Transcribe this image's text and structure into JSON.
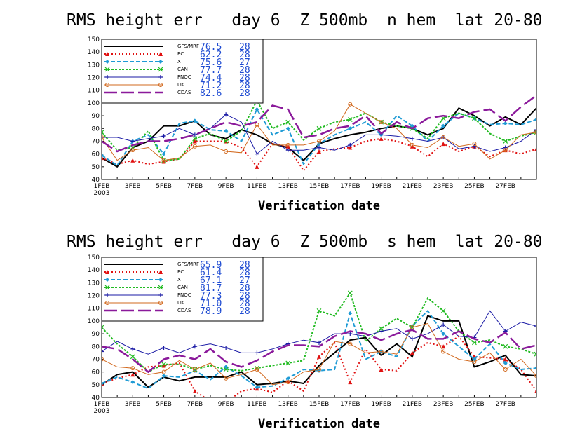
{
  "chart_data": [
    {
      "type": "line",
      "title": "RMS height err   day 6  Z 500mb  n hem  lat 20-80",
      "xlabel": "Verification date",
      "ylim": [
        40,
        150
      ],
      "yticks": [
        40,
        50,
        60,
        70,
        80,
        90,
        100,
        110,
        120,
        130,
        140,
        150
      ],
      "xtick_labels": [
        "1FEB\n2003",
        "3FEB",
        "5FEB",
        "7FEB",
        "9FEB",
        "11FEB",
        "13FEB",
        "15FEB",
        "17FEB",
        "19FEB",
        "21FEB",
        "23FEB",
        "25FEB",
        "27FEB"
      ],
      "legend_position": "top-left",
      "series": [
        {
          "name": "GFS/MRF",
          "stat": "76.5",
          "count": "28",
          "color": "#000000",
          "values": [
            57,
            50,
            65,
            70,
            82,
            82,
            86,
            75,
            72,
            79,
            75,
            68,
            65,
            55,
            68,
            72,
            75,
            77,
            80,
            82,
            80,
            75,
            80,
            96,
            90,
            82,
            89,
            83,
            96
          ]
        },
        {
          "name": "EC",
          "stat": "62.2",
          "count": "28",
          "color": "#e01010",
          "values": [
            57,
            52,
            55,
            52,
            54,
            56,
            70,
            70,
            70,
            65,
            50,
            68,
            66,
            47,
            62,
            64,
            65,
            70,
            72,
            70,
            66,
            58,
            68,
            62,
            66,
            58,
            63,
            60,
            64
          ]
        },
        {
          "name": "X",
          "stat": "75.6",
          "count": "27",
          "color": "#1f9bd5",
          "values": [
            59,
            51,
            70,
            75,
            60,
            84,
            86,
            79,
            78,
            70,
            95,
            75,
            80,
            52,
            68,
            75,
            80,
            85,
            75,
            90,
            82,
            70,
            82,
            92,
            88,
            83,
            84,
            83,
            87
          ]
        },
        {
          "name": "CAN",
          "stat": "77.7",
          "count": "28",
          "color": "#22bb22",
          "values": [
            77,
            63,
            65,
            78,
            55,
            56,
            72,
            76,
            70,
            78,
            102,
            80,
            85,
            71,
            80,
            85,
            87,
            92,
            85,
            82,
            80,
            72,
            88,
            92,
            88,
            76,
            70,
            74,
            77
          ]
        },
        {
          "name": "FNOC",
          "stat": "74.4",
          "count": "28",
          "color": "#1a1aa5",
          "values": [
            73,
            73,
            70,
            72,
            74,
            80,
            75,
            80,
            91,
            85,
            60,
            70,
            63,
            63,
            65,
            63,
            67,
            75,
            75,
            74,
            72,
            70,
            73,
            64,
            66,
            62,
            65,
            70,
            79
          ]
        },
        {
          "name": "UK",
          "stat": "71.2",
          "count": "28",
          "color": "#d2691e",
          "values": [
            73,
            55,
            63,
            65,
            55,
            57,
            66,
            67,
            62,
            61,
            83,
            67,
            67,
            67,
            70,
            78,
            99,
            92,
            85,
            80,
            67,
            65,
            73,
            66,
            68,
            56,
            63,
            75,
            77
          ]
        },
        {
          "name": "CDAS",
          "stat": "82.6",
          "count": "28",
          "color": "#8b1a9b",
          "values": [
            70,
            62,
            67,
            70,
            70,
            72,
            75,
            80,
            85,
            82,
            85,
            98,
            95,
            73,
            75,
            80,
            82,
            90,
            76,
            85,
            80,
            88,
            90,
            88,
            93,
            95,
            86,
            97,
            106
          ]
        }
      ]
    },
    {
      "type": "line",
      "title": "RMS height err   day 6  Z 500mb  s hem  lat 20-80",
      "xlabel": "Verification date",
      "ylim": [
        40,
        150
      ],
      "yticks": [
        40,
        50,
        60,
        70,
        80,
        90,
        100,
        110,
        120,
        130,
        140,
        150
      ],
      "xtick_labels": [
        "1FEB\n2003",
        "3FEB",
        "5FEB",
        "7FEB",
        "9FEB",
        "11FEB",
        "13FEB",
        "15FEB",
        "17FEB",
        "19FEB",
        "21FEB",
        "23FEB",
        "25FEB",
        "27FEB"
      ],
      "legend_position": "top-left",
      "series": [
        {
          "name": "GFS/MRF",
          "stat": "65.9",
          "count": "28",
          "color": "#000000",
          "values": [
            50,
            58,
            60,
            48,
            56,
            53,
            56,
            56,
            56,
            60,
            50,
            51,
            53,
            51,
            65,
            75,
            85,
            87,
            73,
            82,
            72,
            104,
            100,
            100,
            64,
            68,
            73,
            58,
            57
          ]
        },
        {
          "name": "EC",
          "stat": "61.4",
          "count": "28",
          "color": "#e01010",
          "values": [
            51,
            55,
            58,
            64,
            65,
            67,
            45,
            37,
            36,
            45,
            47,
            44,
            53,
            45,
            72,
            83,
            52,
            78,
            62,
            61,
            75,
            83,
            80,
            88,
            72,
            71,
            70,
            62,
            45
          ]
        },
        {
          "name": "X",
          "stat": "67.1",
          "count": "27",
          "color": "#1f9bd5",
          "values": [
            51,
            56,
            52,
            47,
            57,
            56,
            61,
            54,
            64,
            57,
            48,
            49,
            55,
            62,
            61,
            62,
            106,
            70,
            76,
            72,
            96,
            108,
            90,
            80,
            70,
            82,
            67,
            62,
            63
          ]
        },
        {
          "name": "CAN",
          "stat": "81.7",
          "count": "28",
          "color": "#22bb22",
          "values": [
            95,
            82,
            72,
            60,
            66,
            66,
            62,
            65,
            62,
            61,
            63,
            65,
            67,
            69,
            108,
            104,
            122,
            84,
            94,
            102,
            95,
            118,
            108,
            92,
            83,
            85,
            80,
            78,
            74
          ]
        },
        {
          "name": "FNOC",
          "stat": "77.3",
          "count": "28",
          "color": "#1a1aa5",
          "values": [
            76,
            84,
            78,
            74,
            79,
            75,
            80,
            82,
            79,
            75,
            75,
            78,
            82,
            85,
            83,
            90,
            90,
            88,
            92,
            94,
            86,
            90,
            97,
            88,
            87,
            108,
            92,
            99,
            96
          ]
        },
        {
          "name": "UK",
          "stat": "71.0",
          "count": "28",
          "color": "#d2691e",
          "values": [
            70,
            64,
            63,
            58,
            60,
            69,
            62,
            67,
            55,
            58,
            62,
            50,
            52,
            60,
            62,
            84,
            82,
            75,
            76,
            74,
            95,
            98,
            76,
            70,
            68,
            75,
            62,
            70,
            57
          ]
        },
        {
          "name": "CDAS",
          "stat": "78.9",
          "count": "28",
          "color": "#8b1a9b",
          "values": [
            80,
            78,
            70,
            60,
            70,
            73,
            70,
            78,
            68,
            64,
            69,
            76,
            81,
            81,
            80,
            88,
            92,
            90,
            85,
            90,
            93,
            86,
            86,
            92,
            86,
            83,
            91,
            78,
            81
          ]
        }
      ]
    }
  ]
}
